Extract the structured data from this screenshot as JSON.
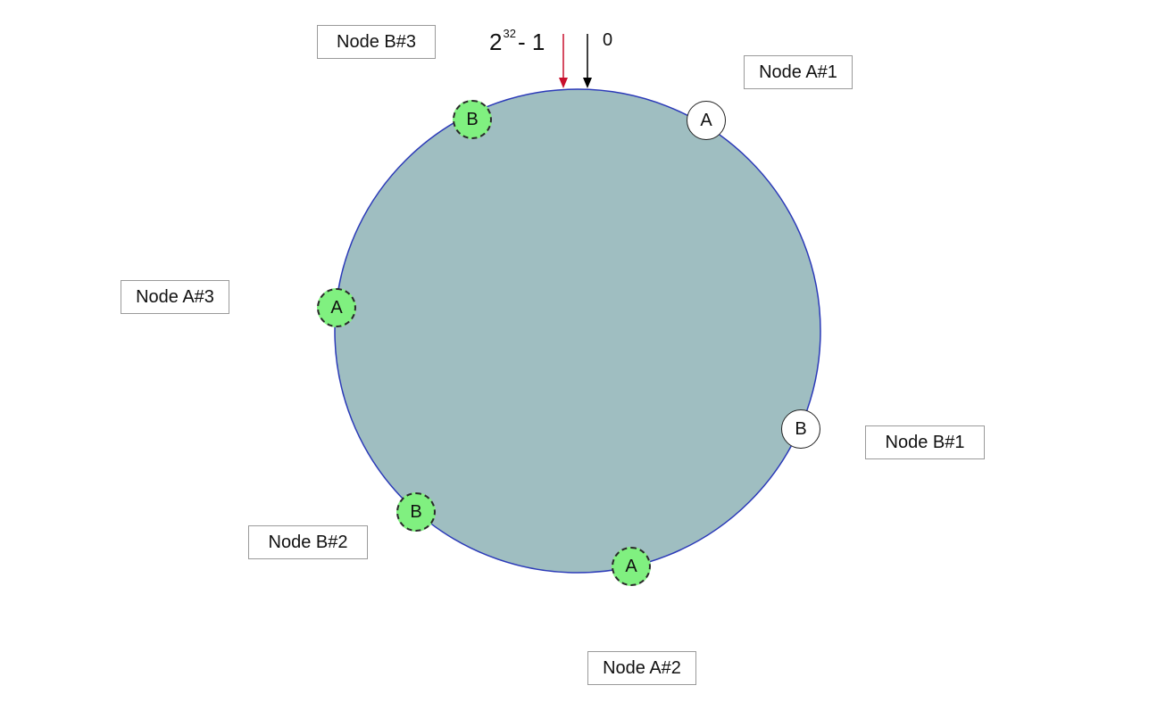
{
  "diagram": {
    "hash_max": {
      "base": "2",
      "exponent": "32",
      "suffix": "- 1"
    },
    "hash_zero": "0",
    "ring": {
      "fill": "#9fbec1",
      "stroke": "#2b3ab8"
    },
    "arrow_colors": {
      "hash_max": "#c8102e",
      "hash_zero": "#000000"
    },
    "nodes": [
      {
        "id": "a1",
        "marker": "A",
        "label": "Node A#1",
        "kind": "physical"
      },
      {
        "id": "b1",
        "marker": "B",
        "label": "Node B#1",
        "kind": "physical"
      },
      {
        "id": "a2",
        "marker": "A",
        "label": "Node A#2",
        "kind": "virtual"
      },
      {
        "id": "b2",
        "marker": "B",
        "label": "Node B#2",
        "kind": "virtual"
      },
      {
        "id": "a3",
        "marker": "A",
        "label": "Node A#3",
        "kind": "virtual"
      },
      {
        "id": "b3",
        "marker": "B",
        "label": "Node B#3",
        "kind": "virtual"
      }
    ],
    "colors": {
      "virtual_fill": "#80f080",
      "physical_fill": "#ffffff"
    }
  }
}
